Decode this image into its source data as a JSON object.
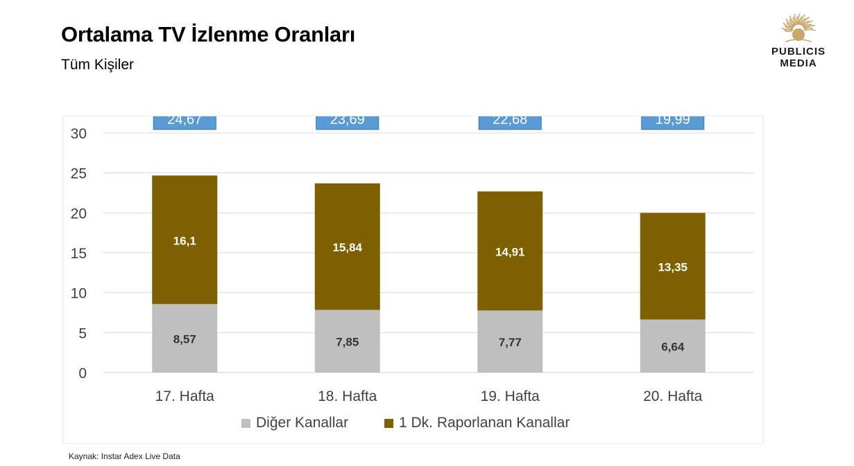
{
  "header": {
    "title": "Ortalama TV İzlenme Oranları",
    "subtitle": "Tüm Kişiler"
  },
  "logo": {
    "line1": "PUBLICIS",
    "line2": "MEDIA",
    "color": "#c9a66b"
  },
  "footer": {
    "source": "Kaynak: Instar  Adex Live Data"
  },
  "chart_data": {
    "type": "bar",
    "stacked": true,
    "title": "",
    "xlabel": "",
    "ylabel": "",
    "categories": [
      "17. Hafta",
      "18. Hafta",
      "19. Hafta",
      "20. Hafta"
    ],
    "series": [
      {
        "name": "Diğer Kanallar",
        "values": [
          8.57,
          7.85,
          7.77,
          6.64
        ],
        "labels": [
          "8,57",
          "7,85",
          "7,77",
          "6,64"
        ],
        "color": "#bfbfbf",
        "label_color": "#333333"
      },
      {
        "name": "1 Dk. Raporlanan Kanallar",
        "values": [
          16.1,
          15.84,
          14.91,
          13.35
        ],
        "labels": [
          "16,1",
          "15,84",
          "14,91",
          "13,35"
        ],
        "color": "#7f6000",
        "label_color": "#ffffff"
      }
    ],
    "totals": [
      "24,67",
      "23,69",
      "22,68",
      "19,99"
    ],
    "total_box_color": "#5b9bd5",
    "ylim": [
      0,
      30
    ],
    "yticks": [
      0,
      5,
      10,
      15,
      20,
      25,
      30
    ],
    "grid": true,
    "legend_position": "bottom"
  }
}
